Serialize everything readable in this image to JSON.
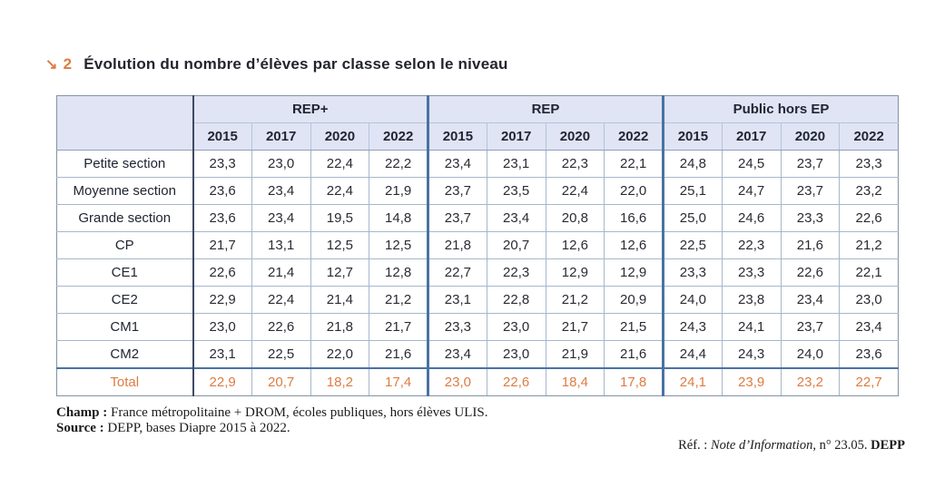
{
  "title": {
    "arrow": "↘",
    "number": "2",
    "text": "Évolution du nombre d’élèves par classe selon le niveau"
  },
  "table": {
    "groups": [
      {
        "label": "REP+",
        "years": [
          "2015",
          "2017",
          "2020",
          "2022"
        ]
      },
      {
        "label": "REP",
        "years": [
          "2015",
          "2017",
          "2020",
          "2022"
        ]
      },
      {
        "label": "Public hors EP",
        "years": [
          "2015",
          "2017",
          "2020",
          "2022"
        ]
      }
    ],
    "rows": [
      {
        "label": "Petite section",
        "total": false,
        "values": [
          "23,3",
          "23,0",
          "22,4",
          "22,2",
          "23,4",
          "23,1",
          "22,3",
          "22,1",
          "24,8",
          "24,5",
          "23,7",
          "23,3"
        ]
      },
      {
        "label": "Moyenne section",
        "total": false,
        "values": [
          "23,6",
          "23,4",
          "22,4",
          "21,9",
          "23,7",
          "23,5",
          "22,4",
          "22,0",
          "25,1",
          "24,7",
          "23,7",
          "23,2"
        ]
      },
      {
        "label": "Grande section",
        "total": false,
        "values": [
          "23,6",
          "23,4",
          "19,5",
          "14,8",
          "23,7",
          "23,4",
          "20,8",
          "16,6",
          "25,0",
          "24,6",
          "23,3",
          "22,6"
        ]
      },
      {
        "label": "CP",
        "total": false,
        "values": [
          "21,7",
          "13,1",
          "12,5",
          "12,5",
          "21,8",
          "20,7",
          "12,6",
          "12,6",
          "22,5",
          "22,3",
          "21,6",
          "21,2"
        ]
      },
      {
        "label": "CE1",
        "total": false,
        "values": [
          "22,6",
          "21,4",
          "12,7",
          "12,8",
          "22,7",
          "22,3",
          "12,9",
          "12,9",
          "23,3",
          "23,3",
          "22,6",
          "22,1"
        ]
      },
      {
        "label": "CE2",
        "total": false,
        "values": [
          "22,9",
          "22,4",
          "21,4",
          "21,2",
          "23,1",
          "22,8",
          "21,2",
          "20,9",
          "24,0",
          "23,8",
          "23,4",
          "23,0"
        ]
      },
      {
        "label": "CM1",
        "total": false,
        "values": [
          "23,0",
          "22,6",
          "21,8",
          "21,7",
          "23,3",
          "23,0",
          "21,7",
          "21,5",
          "24,3",
          "24,1",
          "23,7",
          "23,4"
        ]
      },
      {
        "label": "CM2",
        "total": false,
        "values": [
          "23,1",
          "22,5",
          "22,0",
          "21,6",
          "23,4",
          "23,0",
          "21,9",
          "21,6",
          "24,4",
          "24,3",
          "24,0",
          "23,6"
        ]
      },
      {
        "label": "Total",
        "total": true,
        "values": [
          "22,9",
          "20,7",
          "18,2",
          "17,4",
          "23,0",
          "22,6",
          "18,4",
          "17,8",
          "24,1",
          "23,9",
          "23,2",
          "22,7"
        ]
      }
    ]
  },
  "footer": {
    "champ_label": "Champ :",
    "champ_text": " France métropolitaine + DROM, écoles publiques, hors élèves ULIS.",
    "source_label": "Source :",
    "source_text": " DEPP, bases Diapre 2015 à 2022.",
    "ref_prefix": "Réf. : ",
    "ref_italic": "Note d’Information",
    "ref_middle": ", n° 23.05. ",
    "ref_bold": "DEPP"
  },
  "colors": {
    "accent_orange": "#dd7c42",
    "header_bg": "#e0e4f4",
    "group_border_blue": "#4a72a3",
    "thin_border": "#a6b7cc",
    "dark_separator": "#3e4a63"
  }
}
